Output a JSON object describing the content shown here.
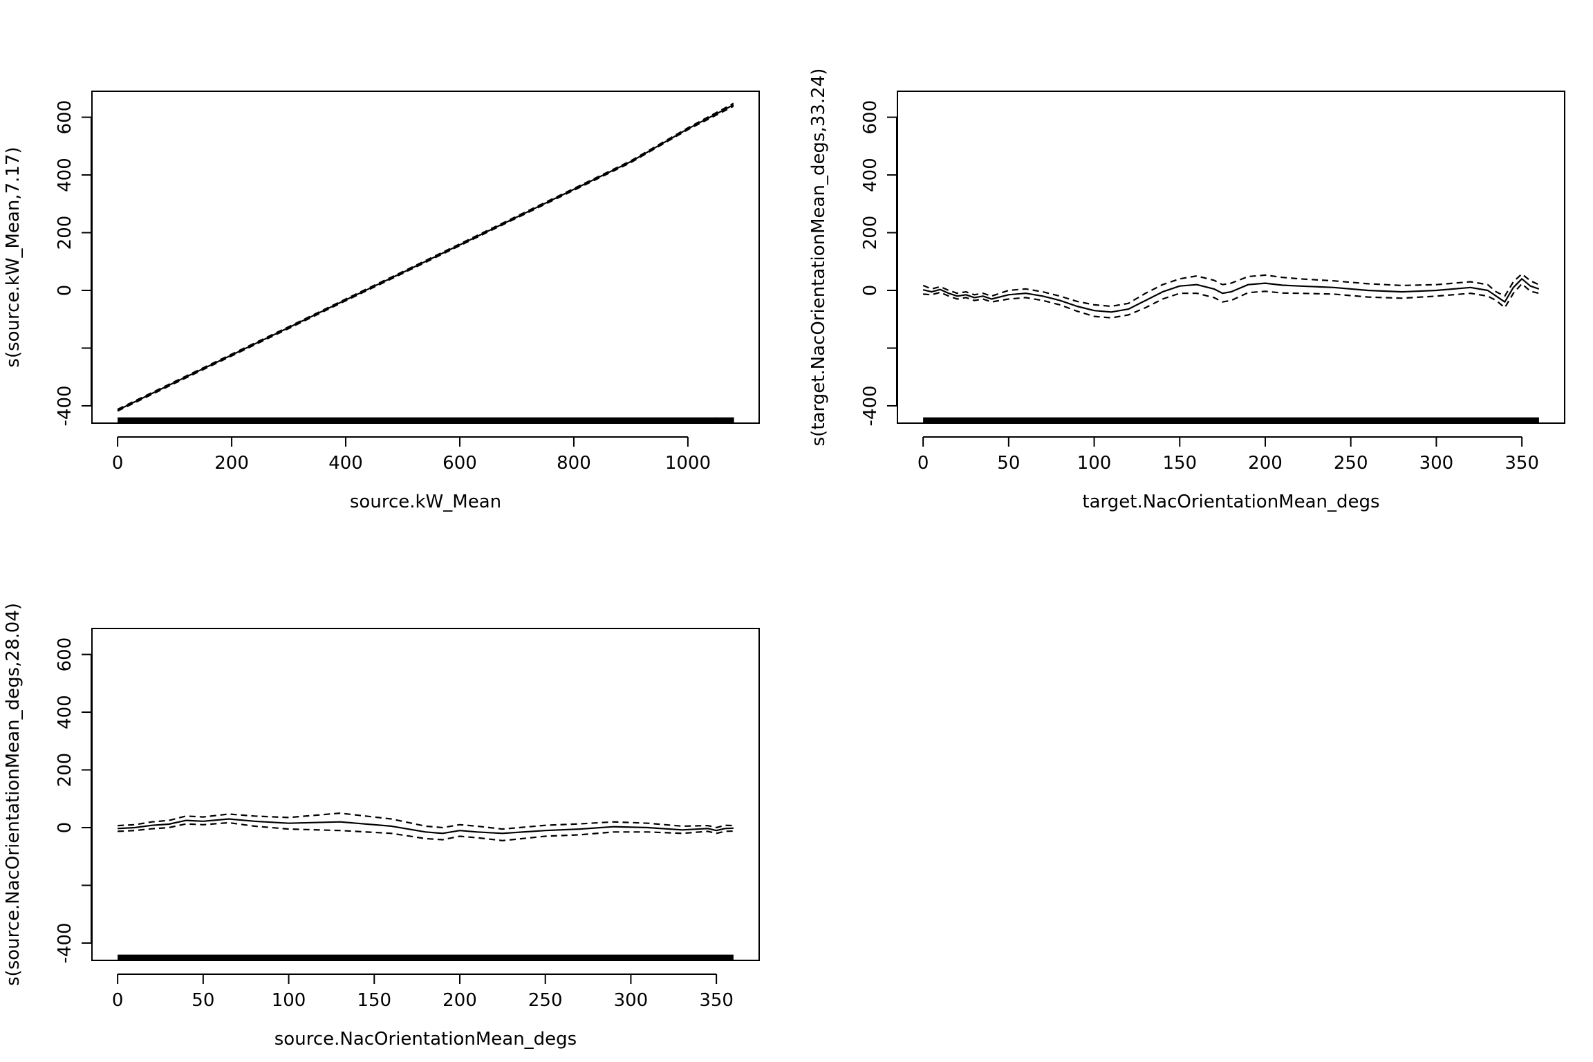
{
  "chart_data": [
    {
      "type": "line",
      "title": "",
      "xlabel": "source.kW_Mean",
      "ylabel": "s(source.kW_Mean,7.17)",
      "xlim": [
        -45,
        1125
      ],
      "ylim": [
        -460,
        690
      ],
      "x_ticks": [
        0,
        200,
        400,
        600,
        800,
        1000
      ],
      "x_tick_labels": [
        "0",
        "200",
        "400",
        "600",
        "800",
        "1000"
      ],
      "y_ticks": [
        -400,
        -200,
        0,
        200,
        400,
        600
      ],
      "y_tick_labels": [
        "-400",
        "",
        "0",
        "200",
        "400",
        "600"
      ],
      "grid": false,
      "rug": {
        "from": 0,
        "to": 1080,
        "sparse_tail": [
          1050,
          1060,
          1068,
          1072,
          1076,
          1080
        ]
      },
      "series": [
        {
          "line_style": "solid",
          "x": [
            0,
            100,
            200,
            300,
            400,
            500,
            600,
            700,
            800,
            900,
            1000,
            1080
          ],
          "values": [
            -415,
            -319,
            -224,
            -129,
            -33,
            62,
            158,
            254,
            350,
            446,
            560,
            643
          ]
        },
        {
          "line_style": "dashed",
          "x": [
            0,
            100,
            200,
            300,
            400,
            500,
            600,
            700,
            800,
            900,
            1000,
            1080
          ],
          "values": [
            -412,
            -316,
            -221,
            -126,
            -30,
            65,
            161,
            257,
            353,
            449,
            563,
            648
          ]
        },
        {
          "line_style": "dashed",
          "x": [
            0,
            100,
            200,
            300,
            400,
            500,
            600,
            700,
            800,
            900,
            1000,
            1080
          ],
          "values": [
            -418,
            -322,
            -227,
            -132,
            -36,
            59,
            155,
            251,
            347,
            443,
            557,
            638
          ]
        }
      ]
    },
    {
      "type": "line",
      "title": "",
      "xlabel": "target.NacOrientationMean_degs",
      "ylabel": "s(target.NacOrientationMean_degs,33.24)",
      "xlim": [
        -15,
        375
      ],
      "ylim": [
        -460,
        690
      ],
      "x_ticks": [
        0,
        50,
        100,
        150,
        200,
        250,
        300,
        350
      ],
      "x_tick_labels": [
        "0",
        "50",
        "100",
        "150",
        "200",
        "250",
        "300",
        "350"
      ],
      "y_ticks": [
        -400,
        -200,
        0,
        200,
        400,
        600
      ],
      "y_tick_labels": [
        "-400",
        "",
        "0",
        "200",
        "400",
        "600"
      ],
      "grid": false,
      "rug": {
        "from": 0,
        "to": 360,
        "sparse_tail": []
      },
      "series": [
        {
          "line_style": "solid",
          "x": [
            0,
            5,
            10,
            15,
            20,
            25,
            30,
            35,
            40,
            50,
            60,
            70,
            80,
            90,
            100,
            110,
            120,
            130,
            140,
            150,
            160,
            170,
            175,
            180,
            190,
            200,
            210,
            220,
            240,
            260,
            280,
            300,
            320,
            330,
            335,
            340,
            345,
            350,
            355,
            360
          ],
          "values": [
            2,
            -5,
            3,
            -10,
            -20,
            -15,
            -25,
            -20,
            -30,
            -15,
            -10,
            -20,
            -35,
            -55,
            -70,
            -75,
            -65,
            -35,
            -5,
            15,
            20,
            5,
            -10,
            -5,
            20,
            25,
            18,
            15,
            10,
            0,
            -5,
            0,
            10,
            0,
            -20,
            -40,
            10,
            40,
            15,
            5
          ]
        },
        {
          "line_style": "dashed",
          "x": [
            0,
            5,
            10,
            15,
            20,
            25,
            30,
            35,
            40,
            50,
            60,
            70,
            80,
            90,
            100,
            110,
            120,
            130,
            140,
            150,
            160,
            170,
            175,
            180,
            190,
            200,
            210,
            220,
            240,
            260,
            280,
            300,
            320,
            330,
            335,
            340,
            345,
            350,
            355,
            360
          ],
          "values": [
            17,
            5,
            13,
            0,
            -10,
            -5,
            -15,
            -10,
            -20,
            0,
            5,
            -5,
            -20,
            -38,
            -50,
            -55,
            -45,
            -10,
            20,
            40,
            50,
            35,
            20,
            25,
            48,
            53,
            45,
            40,
            33,
            23,
            17,
            20,
            30,
            20,
            -5,
            -20,
            30,
            57,
            33,
            20
          ]
        },
        {
          "line_style": "dashed",
          "x": [
            0,
            5,
            10,
            15,
            20,
            25,
            30,
            35,
            40,
            50,
            60,
            70,
            80,
            90,
            100,
            110,
            120,
            130,
            140,
            150,
            160,
            170,
            175,
            180,
            190,
            200,
            210,
            220,
            240,
            260,
            280,
            300,
            320,
            330,
            335,
            340,
            345,
            350,
            355,
            360
          ],
          "values": [
            -13,
            -15,
            -7,
            -20,
            -30,
            -25,
            -35,
            -30,
            -40,
            -30,
            -25,
            -35,
            -50,
            -72,
            -90,
            -95,
            -85,
            -60,
            -30,
            -10,
            -10,
            -25,
            -40,
            -35,
            -8,
            -3,
            -9,
            -10,
            -13,
            -23,
            -27,
            -20,
            -10,
            -20,
            -35,
            -60,
            -10,
            23,
            -3,
            -10
          ]
        }
      ]
    },
    {
      "type": "line",
      "title": "",
      "xlabel": "source.NacOrientationMean_degs",
      "ylabel": "s(source.NacOrientationMean_degs,28.04)",
      "xlim": [
        -15,
        375
      ],
      "ylim": [
        -460,
        690
      ],
      "x_ticks": [
        0,
        50,
        100,
        150,
        200,
        250,
        300,
        350
      ],
      "x_tick_labels": [
        "0",
        "50",
        "100",
        "150",
        "200",
        "250",
        "300",
        "350"
      ],
      "y_ticks": [
        -400,
        -200,
        0,
        200,
        400,
        600
      ],
      "y_tick_labels": [
        "-400",
        "",
        "0",
        "200",
        "400",
        "600"
      ],
      "grid": false,
      "rug": {
        "from": 0,
        "to": 360,
        "sparse_tail": []
      },
      "series": [
        {
          "line_style": "solid",
          "x": [
            0,
            10,
            20,
            30,
            40,
            50,
            65,
            80,
            100,
            130,
            160,
            180,
            190,
            200,
            210,
            225,
            250,
            270,
            290,
            310,
            330,
            345,
            350,
            355,
            360
          ],
          "values": [
            -3,
            0,
            8,
            12,
            25,
            22,
            30,
            22,
            15,
            20,
            5,
            -15,
            -20,
            -10,
            -15,
            -20,
            -10,
            -5,
            3,
            0,
            -8,
            -3,
            -10,
            -3,
            -2
          ]
        },
        {
          "line_style": "dashed",
          "x": [
            0,
            10,
            20,
            30,
            40,
            50,
            65,
            80,
            100,
            130,
            160,
            180,
            190,
            200,
            210,
            225,
            250,
            270,
            290,
            310,
            330,
            345,
            350,
            355,
            360
          ],
          "values": [
            7,
            10,
            20,
            25,
            40,
            37,
            47,
            40,
            35,
            50,
            30,
            5,
            0,
            10,
            5,
            -5,
            8,
            13,
            20,
            15,
            5,
            7,
            0,
            8,
            7
          ]
        },
        {
          "line_style": "dashed",
          "x": [
            0,
            10,
            20,
            30,
            40,
            50,
            65,
            80,
            100,
            130,
            160,
            180,
            190,
            200,
            210,
            225,
            250,
            270,
            290,
            310,
            330,
            345,
            350,
            355,
            360
          ],
          "values": [
            -13,
            -10,
            -4,
            0,
            13,
            10,
            17,
            5,
            -5,
            -10,
            -20,
            -38,
            -42,
            -30,
            -35,
            -45,
            -30,
            -25,
            -15,
            -15,
            -20,
            -13,
            -20,
            -13,
            -12
          ]
        }
      ]
    }
  ]
}
